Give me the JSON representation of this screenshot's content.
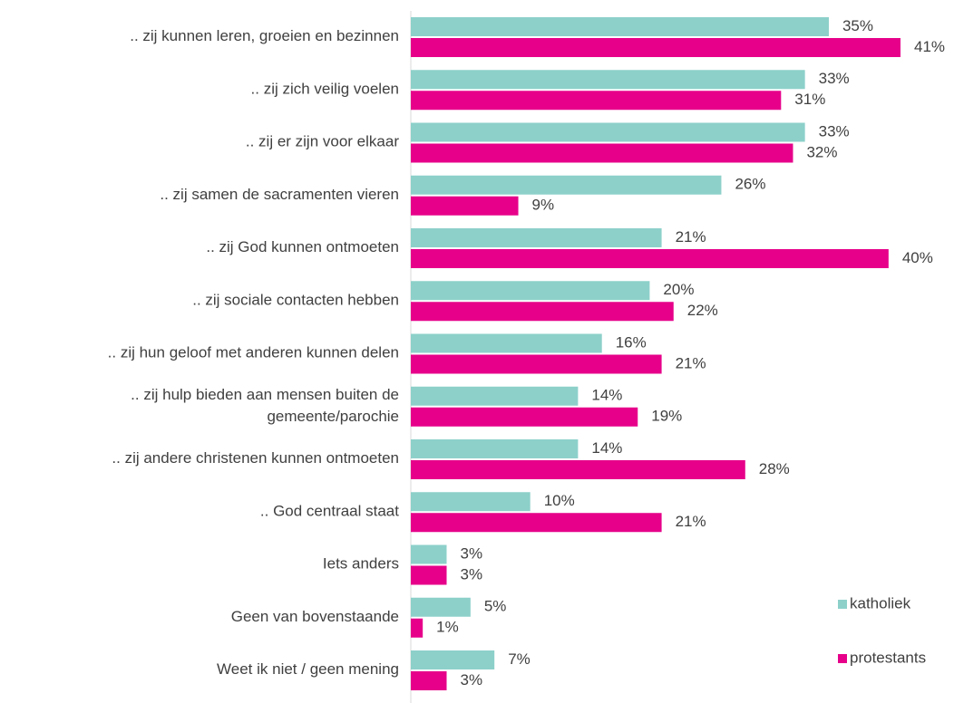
{
  "chart_data": {
    "type": "hbar",
    "categories": [
      ".. zij kunnen leren, groeien en bezinnen",
      ".. zij zich veilig voelen",
      ".. zij er zijn voor elkaar",
      ".. zij samen de sacramenten vieren",
      ".. zij God kunnen ontmoeten",
      ".. zij sociale contacten hebben",
      ".. zij hun geloof met anderen kunnen delen",
      ".. zij hulp bieden aan mensen buiten de\ngemeente/parochie",
      ".. zij andere christenen kunnen ontmoeten",
      ".. God centraal staat",
      "Iets anders",
      "Geen van bovenstaande",
      "Weet ik niet / geen mening"
    ],
    "series": [
      {
        "name": "katholiek",
        "color": "#8dd0ca",
        "values": [
          35,
          33,
          33,
          26,
          21,
          20,
          16,
          14,
          14,
          10,
          3,
          5,
          7
        ],
        "value_labels": [
          "35%",
          "33%",
          "33%",
          "26%",
          "21%",
          "20%",
          "16%",
          "14%",
          "14%",
          "10%",
          "3%",
          "5%",
          "7%"
        ]
      },
      {
        "name": "protestants",
        "color": "#e6008a",
        "values": [
          41,
          31,
          32,
          9,
          40,
          22,
          21,
          19,
          28,
          21,
          3,
          1,
          3
        ],
        "value_labels": [
          "41%",
          "31%",
          "32%",
          "9%",
          "40%",
          "22%",
          "21%",
          "19%",
          "28%",
          "21%",
          "3%",
          "1%",
          "3%"
        ]
      }
    ],
    "xlim": [
      0,
      41
    ],
    "legend": "right"
  }
}
